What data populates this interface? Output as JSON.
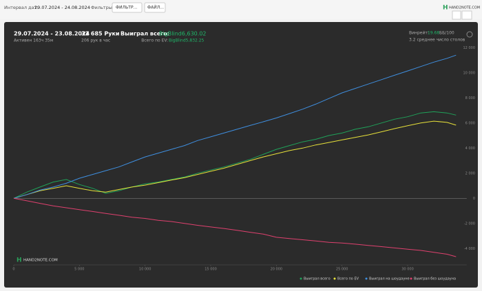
{
  "toolbar": {
    "date_label": "Интервал дат:",
    "date_range": "29.07.2024 - 24.08.2024",
    "filters_label": "Фильтры:",
    "filter_button": "ФИЛЬТР...",
    "file_button": "ФАЙЛ...",
    "brand": "HAND2NOTE.COM"
  },
  "header": {
    "period": "29.07.2024 - 23.08.2024",
    "active": "Активен 163ч 35м",
    "hands": "33 685 Руки",
    "hands_per_hour": "206 рук в час",
    "won_label": "Выиграл всего:",
    "won_value": "BigBlind6,630.02",
    "ev_label": "Всего по EV:",
    "ev_value": "BigBlind5,832.25",
    "winrate_label": "Винрейт:",
    "winrate_value": "19.68",
    "winrate_unit": "ББ/100",
    "tables": "3.2 среднее число столов"
  },
  "watermark": "HAND2NOTE.COM",
  "chart_data": {
    "type": "line",
    "x": [
      0,
      1000,
      2000,
      3000,
      4000,
      5000,
      6000,
      7000,
      8000,
      9000,
      10000,
      11000,
      12000,
      13000,
      14000,
      15000,
      16000,
      17000,
      18000,
      19000,
      20000,
      21000,
      22000,
      23000,
      24000,
      25000,
      26000,
      27000,
      28000,
      29000,
      30000,
      31000,
      32000,
      33000,
      33685
    ],
    "series": [
      {
        "name": "Выиграл всего",
        "color": "#1fa35a",
        "values": [
          0,
          500,
          900,
          1300,
          1500,
          1100,
          800,
          400,
          600,
          900,
          1150,
          1300,
          1500,
          1700,
          2000,
          2250,
          2500,
          2800,
          3100,
          3500,
          3900,
          4200,
          4500,
          4700,
          5000,
          5200,
          5500,
          5700,
          6000,
          6300,
          6500,
          6800,
          6900,
          6800,
          6630
        ]
      },
      {
        "name": "Всего по EV",
        "color": "#e8e23a",
        "values": [
          0,
          300,
          600,
          800,
          1000,
          800,
          600,
          500,
          700,
          900,
          1050,
          1250,
          1450,
          1650,
          1900,
          2150,
          2400,
          2700,
          3000,
          3300,
          3550,
          3800,
          4000,
          4250,
          4450,
          4650,
          4850,
          5050,
          5300,
          5550,
          5780,
          6000,
          6150,
          6050,
          5832
        ]
      },
      {
        "name": "Выиграл на шоудауне",
        "color": "#3f8fe0",
        "values": [
          0,
          300,
          650,
          900,
          1200,
          1600,
          1900,
          2200,
          2500,
          2900,
          3300,
          3600,
          3900,
          4200,
          4600,
          4900,
          5200,
          5500,
          5800,
          6100,
          6400,
          6750,
          7100,
          7500,
          7950,
          8400,
          8750,
          9100,
          9450,
          9800,
          10150,
          10500,
          10850,
          11150,
          11400
        ]
      },
      {
        "name": "Выиграл без шоудауна",
        "color": "#e0416f",
        "values": [
          0,
          -200,
          -400,
          -600,
          -750,
          -900,
          -1050,
          -1200,
          -1350,
          -1500,
          -1600,
          -1750,
          -1850,
          -2000,
          -2150,
          -2280,
          -2400,
          -2550,
          -2700,
          -2850,
          -3100,
          -3200,
          -3300,
          -3400,
          -3500,
          -3560,
          -3650,
          -3750,
          -3850,
          -3950,
          -4050,
          -4150,
          -4300,
          -4450,
          -4650
        ]
      }
    ],
    "xlim": [
      0,
      34500
    ],
    "xticks": [
      0,
      {
        "value": 5000,
        "label": "5 000"
      },
      {
        "value": 10000,
        "label": "10 000"
      },
      {
        "value": 15000,
        "label": "15 000"
      },
      {
        "value": 20000,
        "label": "20 000"
      },
      {
        "value": 25000,
        "label": "25 000"
      },
      {
        "value": 30000,
        "label": "30 000"
      }
    ],
    "ylim": [
      -5300,
      12400
    ],
    "yticks": [
      {
        "value": -4000,
        "label": "-4 000"
      },
      {
        "value": -2000,
        "label": "-2 000"
      },
      0,
      {
        "value": 2000,
        "label": "2 000"
      },
      {
        "value": 4000,
        "label": "4 000"
      },
      {
        "value": 6000,
        "label": "6 000"
      },
      {
        "value": 8000,
        "label": "8 000"
      },
      {
        "value": 10000,
        "label": "10 000"
      },
      {
        "value": 12000,
        "label": "12 000"
      }
    ],
    "grid": false,
    "legend": "bottom-right"
  }
}
